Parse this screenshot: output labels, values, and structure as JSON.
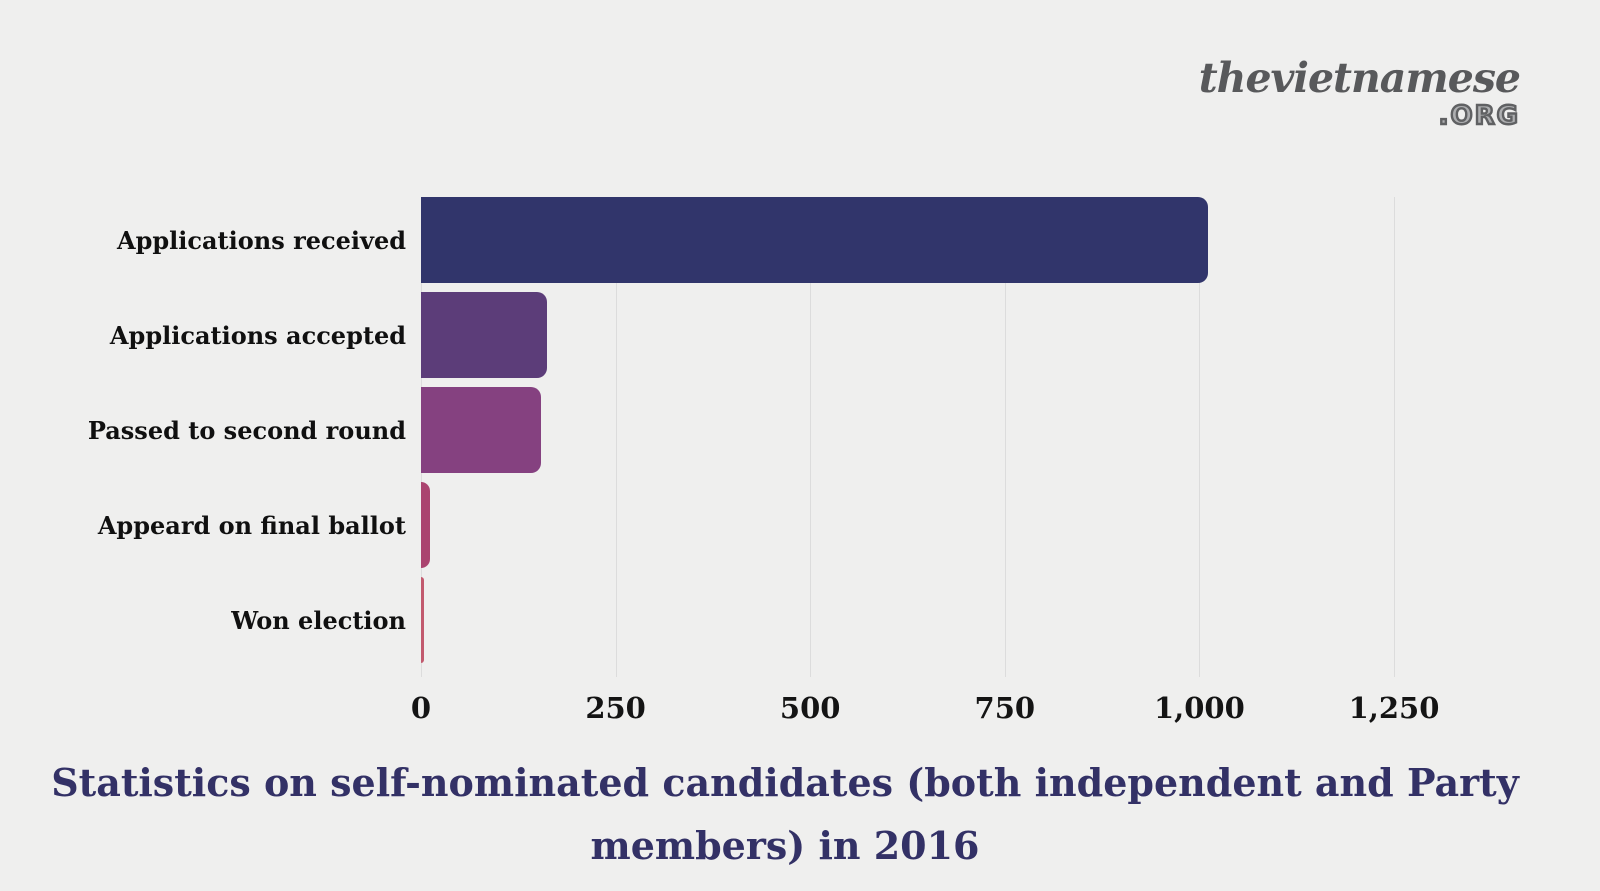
{
  "logo": {
    "name": "thevietnamese",
    "tld": ".ORG",
    "color": "#58595b"
  },
  "chart_data": {
    "type": "bar",
    "orientation": "horizontal",
    "title": "Statistics on self-nominated candidates (both independent and Party members) in 2016",
    "categories": [
      "Applications received",
      "Applications accepted",
      "Passed to second round",
      "Appeard on final ballot",
      "Won election"
    ],
    "values": [
      1011,
      162,
      154,
      11,
      2
    ],
    "bar_colors": [
      "#31356b",
      "#5c3d79",
      "#854180",
      "#aa446f",
      "#c25a6e"
    ],
    "x_ticks": [
      "0",
      "250",
      "500",
      "750",
      "1,000",
      "1,250"
    ],
    "x_tick_values": [
      0,
      250,
      500,
      750,
      1000,
      1250
    ],
    "xlim": [
      0,
      1250
    ],
    "xlabel": "",
    "ylabel": "",
    "grid": "vertical-only",
    "gridline_color": "#dcdcdc",
    "background_color": "#efefee",
    "legend": "none"
  },
  "title": {
    "line1": "Statistics on self-nominated candidates (both independent and Party",
    "line2": "members) in 2016"
  }
}
